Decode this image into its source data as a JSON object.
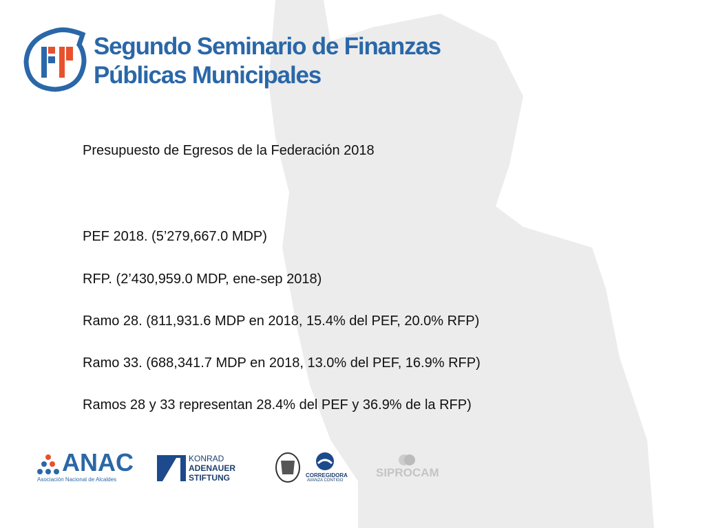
{
  "header": {
    "title_line_1": "Segundo Seminario de Finanzas",
    "title_line_2": "Públicas Municipales"
  },
  "subtitle": "Presupuesto de Egresos de la Federación 2018",
  "lines": [
    "PEF 2018.  (5’279,667.0 MDP)",
    "RFP.  (2’430,959.0 MDP, ene-sep 2018)",
    "Ramo 28.  (811,931.6 MDP en 2018, 15.4% del PEF, 20.0% RFP)",
    "Ramo 33.  (688,341.7 MDP en 2018, 13.0% del PEF, 16.9% RFP)",
    "Ramos 28 y 33 representan 28.4% del PEF y 36.9% de la RFP)"
  ],
  "logos": {
    "anac": "ANAC",
    "anac_sub": "Asociación Nacional de Alcaldes",
    "kas_1": "KONRAD",
    "kas_2": "ADENAUER",
    "kas_3": "STIFTUNG",
    "corregidora": "CORREGIDORA",
    "corregidora_sub": "AVANZA CONTIGO",
    "siprocam": "SIPROCAM"
  }
}
